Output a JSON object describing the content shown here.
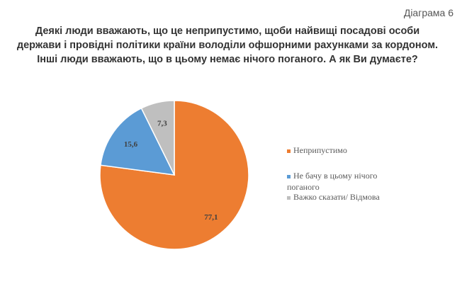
{
  "diagram_label": "Діаграма 6",
  "chart_data": {
    "type": "pie",
    "title": "Деякі люди вважають, що це  неприпустимо, щоби найвищі посадові особи держави і провідні політики країни володіли офшорними рахунками за кордоном. Інші люди вважають, що в цьому немає нічого поганого. А як Ви думаєте?",
    "categories": [
      "Неприпустимо",
      "Не бачу в цьому нічого поганого",
      "Важко сказати/ Відмова"
    ],
    "values": [
      77.1,
      15.6,
      7.3
    ],
    "data_labels": [
      "77,1",
      "15,6",
      "7,3"
    ],
    "colors": [
      "#ed7d31",
      "#5b9bd5",
      "#bfbfbf"
    ],
    "legend_position": "right"
  }
}
